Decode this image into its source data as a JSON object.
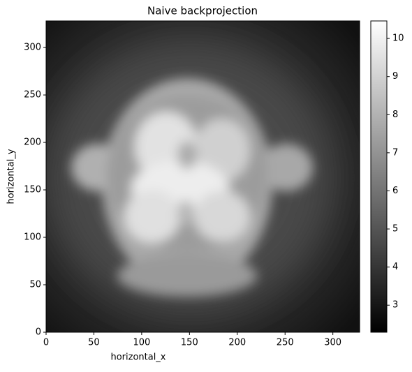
{
  "chart_data": {
    "type": "image",
    "title": "Naive backprojection",
    "xlabel": "horizontal_x",
    "ylabel": "horizontal_y",
    "xlim": [
      0,
      328
    ],
    "ylim": [
      0,
      328
    ],
    "xticks": [
      0,
      50,
      100,
      150,
      200,
      250,
      300
    ],
    "yticks": [
      0,
      50,
      100,
      150,
      200,
      250,
      300
    ],
    "cmap": "gray",
    "colorbar": {
      "clim": [
        2.29,
        10.46
      ],
      "ticks": [
        3,
        4,
        5,
        6,
        7,
        8,
        9,
        10
      ]
    }
  }
}
